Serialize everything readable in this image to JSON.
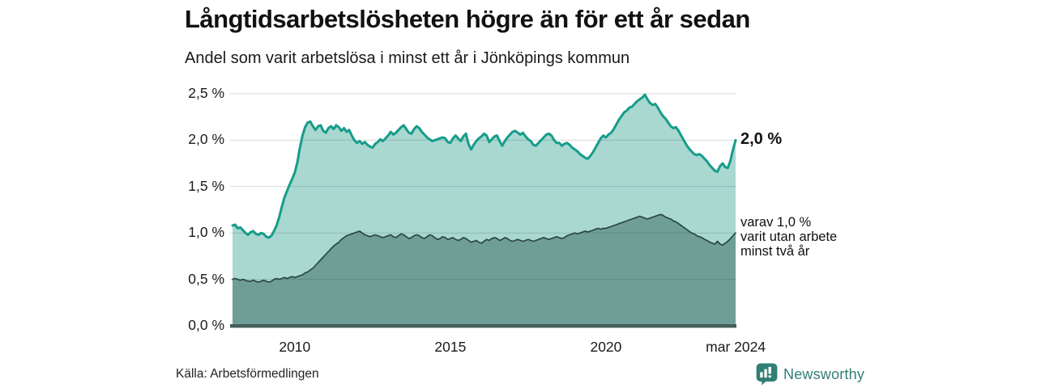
{
  "header": {
    "title": "Långtidsarbetslösheten högre än för ett år sedan",
    "subtitle": "Andel som varit arbetslösa i minst ett år i Jönköpings kommun"
  },
  "footer": {
    "source": "Källa: Arbetsförmedlingen",
    "brand": "Newsworthy"
  },
  "chart_data": {
    "type": "area",
    "title": "Långtidsarbetslösheten högre än för ett år sedan",
    "subtitle": "Andel som varit arbetslösa i minst ett år i Jönköpings kommun",
    "x_start_year": 2008.0,
    "x_step": "month",
    "x_end": "mar 2024",
    "ylim": [
      0,
      2.6
    ],
    "grid": true,
    "y_ticks": [
      {
        "value": 0.0,
        "label": "0,0 %"
      },
      {
        "value": 0.5,
        "label": "0,5 %"
      },
      {
        "value": 1.0,
        "label": "1,0 %"
      },
      {
        "value": 1.5,
        "label": "1,5 %"
      },
      {
        "value": 2.0,
        "label": "2,0 %"
      },
      {
        "value": 2.5,
        "label": "2,5 %"
      }
    ],
    "x_ticks": [
      {
        "pos": 2010.0,
        "label": "2010"
      },
      {
        "pos": 2015.0,
        "label": "2015"
      },
      {
        "pos": 2020.0,
        "label": "2020"
      },
      {
        "pos": 2024.17,
        "label": "mar 2024"
      }
    ],
    "colors": {
      "line_total": "#169c8a",
      "fill_total": "#a9d8d1",
      "line_two_years": "#2b4742",
      "fill_two_years": "#6f9e97",
      "axis": "#465e5a",
      "grid": "rgba(45,65,60,0.20)",
      "brand": "#317f76"
    },
    "end_labels": {
      "total": "2,0 %",
      "dark_lines": [
        "varav 1,0 %",
        "varit utan arbete",
        "minst två år"
      ]
    },
    "series": [
      {
        "name": "Andel arbetslösa minst ett år",
        "color": "#169c8a",
        "fill": "#a9d8d1",
        "line_width": 3,
        "end_value": 2.0,
        "values": [
          1.08,
          1.09,
          1.05,
          1.06,
          1.03,
          1.0,
          0.98,
          1.01,
          1.02,
          0.99,
          0.98,
          1.0,
          0.99,
          0.96,
          0.95,
          0.97,
          1.02,
          1.08,
          1.17,
          1.28,
          1.38,
          1.45,
          1.52,
          1.58,
          1.65,
          1.76,
          1.92,
          2.05,
          2.14,
          2.19,
          2.2,
          2.15,
          2.11,
          2.15,
          2.16,
          2.1,
          2.08,
          2.13,
          2.15,
          2.12,
          2.16,
          2.14,
          2.1,
          2.13,
          2.09,
          2.11,
          2.05,
          2.0,
          1.97,
          1.99,
          1.96,
          1.98,
          1.95,
          1.93,
          1.92,
          1.96,
          1.98,
          2.01,
          1.99,
          2.02,
          2.05,
          2.09,
          2.06,
          2.08,
          2.11,
          2.14,
          2.16,
          2.12,
          2.08,
          2.07,
          2.12,
          2.15,
          2.13,
          2.09,
          2.06,
          2.03,
          2.01,
          1.99,
          2.0,
          2.01,
          2.02,
          2.03,
          2.02,
          1.98,
          1.97,
          2.02,
          2.05,
          2.02,
          1.99,
          2.04,
          2.07,
          1.96,
          1.9,
          1.95,
          1.99,
          2.02,
          2.04,
          2.07,
          2.05,
          1.98,
          2.01,
          2.04,
          2.05,
          1.99,
          1.94,
          1.99,
          2.03,
          2.06,
          2.09,
          2.1,
          2.08,
          2.06,
          2.08,
          2.04,
          2.01,
          1.99,
          1.95,
          1.94,
          1.97,
          2.0,
          2.03,
          2.06,
          2.07,
          2.05,
          2.0,
          1.97,
          1.97,
          1.94,
          1.96,
          1.97,
          1.95,
          1.92,
          1.9,
          1.88,
          1.85,
          1.83,
          1.81,
          1.8,
          1.83,
          1.87,
          1.92,
          1.97,
          2.02,
          2.05,
          2.03,
          2.06,
          2.08,
          2.12,
          2.17,
          2.22,
          2.26,
          2.3,
          2.32,
          2.35,
          2.36,
          2.39,
          2.42,
          2.44,
          2.46,
          2.49,
          2.44,
          2.4,
          2.38,
          2.39,
          2.35,
          2.3,
          2.26,
          2.23,
          2.19,
          2.15,
          2.13,
          2.14,
          2.1,
          2.05,
          2.0,
          1.95,
          1.91,
          1.88,
          1.85,
          1.84,
          1.85,
          1.83,
          1.8,
          1.77,
          1.73,
          1.7,
          1.67,
          1.66,
          1.72,
          1.75,
          1.71,
          1.7,
          1.78,
          1.9,
          2.0
        ]
      },
      {
        "name": "varav utan arbete minst två år",
        "color": "#2b4742",
        "fill": "#6f9e97",
        "line_width": 1.7,
        "end_value": 1.0,
        "values": [
          0.5,
          0.51,
          0.5,
          0.49,
          0.5,
          0.49,
          0.48,
          0.48,
          0.49,
          0.48,
          0.47,
          0.48,
          0.49,
          0.48,
          0.47,
          0.48,
          0.5,
          0.51,
          0.5,
          0.51,
          0.52,
          0.51,
          0.52,
          0.53,
          0.52,
          0.53,
          0.54,
          0.55,
          0.57,
          0.58,
          0.6,
          0.62,
          0.65,
          0.68,
          0.71,
          0.74,
          0.77,
          0.8,
          0.83,
          0.86,
          0.88,
          0.9,
          0.93,
          0.95,
          0.97,
          0.98,
          0.99,
          1.0,
          1.01,
          1.02,
          1.0,
          0.98,
          0.97,
          0.96,
          0.97,
          0.98,
          0.97,
          0.96,
          0.95,
          0.96,
          0.97,
          0.98,
          0.96,
          0.95,
          0.97,
          0.99,
          0.98,
          0.96,
          0.94,
          0.95,
          0.97,
          0.98,
          0.97,
          0.95,
          0.94,
          0.96,
          0.98,
          0.97,
          0.95,
          0.93,
          0.94,
          0.96,
          0.95,
          0.93,
          0.94,
          0.95,
          0.93,
          0.92,
          0.93,
          0.95,
          0.94,
          0.92,
          0.9,
          0.91,
          0.92,
          0.9,
          0.89,
          0.91,
          0.93,
          0.92,
          0.94,
          0.95,
          0.94,
          0.92,
          0.93,
          0.95,
          0.94,
          0.92,
          0.91,
          0.92,
          0.93,
          0.92,
          0.91,
          0.92,
          0.93,
          0.92,
          0.91,
          0.92,
          0.93,
          0.94,
          0.95,
          0.94,
          0.93,
          0.94,
          0.95,
          0.96,
          0.95,
          0.94,
          0.95,
          0.97,
          0.98,
          0.99,
          1.0,
          0.99,
          1.0,
          1.01,
          1.02,
          1.01,
          1.02,
          1.03,
          1.04,
          1.05,
          1.04,
          1.05,
          1.05,
          1.06,
          1.07,
          1.08,
          1.09,
          1.1,
          1.11,
          1.12,
          1.13,
          1.14,
          1.15,
          1.16,
          1.17,
          1.18,
          1.17,
          1.16,
          1.15,
          1.16,
          1.17,
          1.18,
          1.19,
          1.2,
          1.19,
          1.17,
          1.16,
          1.15,
          1.13,
          1.12,
          1.1,
          1.08,
          1.06,
          1.04,
          1.02,
          1.0,
          0.99,
          0.97,
          0.96,
          0.95,
          0.93,
          0.92,
          0.9,
          0.89,
          0.88,
          0.91,
          0.88,
          0.87,
          0.89,
          0.91,
          0.94,
          0.97,
          1.0
        ]
      }
    ]
  }
}
